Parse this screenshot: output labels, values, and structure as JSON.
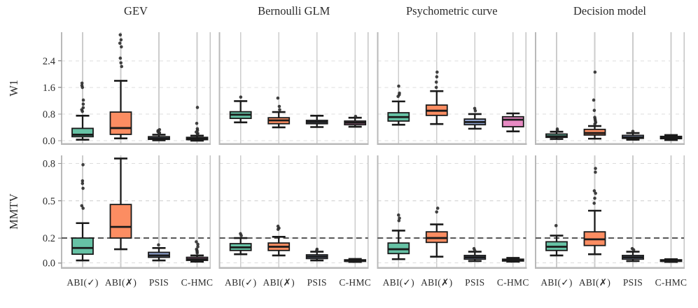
{
  "chart_data": {
    "type": "boxplot",
    "layout_hint": "2x4 grid of box plots; shared y-axis per row; vertical solid gridlines at category centers; horizontal dashed gridlines at y-ticks; no legend",
    "column_titles": [
      "GEV",
      "Bernoulli GLM",
      "Psychometric curve",
      "Decision model"
    ],
    "categories": [
      "ABI(✓)",
      "ABI(✗)",
      "PSIS",
      "C-HMC"
    ],
    "category_colors": [
      "#66c2a5",
      "#fc8d62",
      "#8da0cb",
      "#e78ac3"
    ],
    "box_edge_color": "#1a1a1a",
    "outlier_color": "#2e2e2e",
    "reference_line_color": "#4d4d4d",
    "rows": [
      {
        "ylabel": "W1",
        "ylim": [
          -0.095,
          3.26
        ],
        "yticks": [
          0,
          0.8,
          1.6,
          2.4
        ],
        "ytick_labels": [
          "0.0",
          "0.8",
          "1.6",
          "2.4"
        ],
        "reference_line": null,
        "panels": [
          {
            "column": "GEV",
            "boxes": [
              {
                "method": "ABI(✓)",
                "q1": 0.12,
                "median": 0.18,
                "q3": 0.37,
                "whisker_low": 0.03,
                "whisker_high": 0.75,
                "outliers": [
                  0.88,
                  0.93,
                  0.99,
                  1.1,
                  1.22,
                  1.6,
                  1.66,
                  1.73
                ]
              },
              {
                "method": "ABI(✗)",
                "q1": 0.19,
                "median": 0.38,
                "q3": 0.86,
                "whisker_low": 0.07,
                "whisker_high": 1.8,
                "outliers": [
                  2.23,
                  2.34,
                  2.48,
                  2.82,
                  2.93,
                  3.03,
                  3.18
                ]
              },
              {
                "method": "PSIS",
                "q1": 0.04,
                "median": 0.07,
                "q3": 0.12,
                "whisker_low": 0.01,
                "whisker_high": 0.18,
                "outliers": [
                  0.21,
                  0.24,
                  0.27,
                  0.3,
                  0.33
                ]
              },
              {
                "method": "C-HMC",
                "q1": 0.03,
                "median": 0.06,
                "q3": 0.1,
                "whisker_low": 0.0,
                "whisker_high": 0.15,
                "outliers": [
                  0.19,
                  0.22,
                  0.26,
                  0.31,
                  0.36,
                  0.52,
                  1.0
                ]
              }
            ]
          },
          {
            "column": "Bernoulli GLM",
            "boxes": [
              {
                "method": "ABI(✓)",
                "q1": 0.67,
                "median": 0.78,
                "q3": 0.87,
                "whisker_low": 0.55,
                "whisker_high": 1.19,
                "outliers": [
                  1.31
                ]
              },
              {
                "method": "ABI(✗)",
                "q1": 0.51,
                "median": 0.61,
                "q3": 0.69,
                "whisker_low": 0.4,
                "whisker_high": 0.86,
                "outliers": [
                  0.93,
                  1.03,
                  1.28
                ]
              },
              {
                "method": "PSIS",
                "q1": 0.51,
                "median": 0.56,
                "q3": 0.61,
                "whisker_low": 0.41,
                "whisker_high": 0.75,
                "outliers": []
              },
              {
                "method": "C-HMC",
                "q1": 0.48,
                "median": 0.54,
                "q3": 0.59,
                "whisker_low": 0.42,
                "whisker_high": 0.69,
                "outliers": [
                  0.73
                ]
              }
            ]
          },
          {
            "column": "Psychometric curve",
            "boxes": [
              {
                "method": "ABI(✓)",
                "q1": 0.59,
                "median": 0.71,
                "q3": 0.84,
                "whisker_low": 0.48,
                "whisker_high": 1.18,
                "outliers": [
                  1.33,
                  1.38,
                  1.43,
                  1.64
                ]
              },
              {
                "method": "ABI(✗)",
                "q1": 0.76,
                "median": 0.9,
                "q3": 1.07,
                "whisker_low": 0.5,
                "whisker_high": 1.49,
                "outliers": [
                  1.6,
                  1.76,
                  1.92,
                  2.06
                ]
              },
              {
                "method": "PSIS",
                "q1": 0.48,
                "median": 0.56,
                "q3": 0.65,
                "whisker_low": 0.36,
                "whisker_high": 0.8,
                "outliers": [
                  0.9,
                  0.97
                ]
              },
              {
                "method": "C-HMC",
                "q1": 0.42,
                "median": 0.63,
                "q3": 0.72,
                "whisker_low": 0.28,
                "whisker_high": 0.82,
                "outliers": []
              }
            ]
          },
          {
            "column": "Decision model",
            "boxes": [
              {
                "method": "ABI(✓)",
                "q1": 0.1,
                "median": 0.13,
                "q3": 0.2,
                "whisker_low": 0.05,
                "whisker_high": 0.27,
                "outliers": [
                  0.31,
                  0.35
                ]
              },
              {
                "method": "ABI(✗)",
                "q1": 0.17,
                "median": 0.23,
                "q3": 0.34,
                "whisker_low": 0.06,
                "whisker_high": 0.44,
                "outliers": [
                  0.5,
                  0.55,
                  0.6,
                  0.65,
                  0.7,
                  0.91,
                  1.22,
                  2.06
                ]
              },
              {
                "method": "PSIS",
                "q1": 0.07,
                "median": 0.1,
                "q3": 0.16,
                "whisker_low": 0.03,
                "whisker_high": 0.23,
                "outliers": [
                  0.28
                ]
              },
              {
                "method": "C-HMC",
                "q1": 0.06,
                "median": 0.09,
                "q3": 0.13,
                "whisker_low": 0.02,
                "whisker_high": 0.17,
                "outliers": []
              }
            ]
          }
        ]
      },
      {
        "ylabel": "MMTV",
        "ylim": [
          -0.039,
          0.865
        ],
        "yticks": [
          0,
          0.2,
          0.5,
          0.8
        ],
        "ytick_labels": [
          "0.0",
          "0.2",
          "0.5",
          "0.8"
        ],
        "reference_line": 0.2,
        "panels": [
          {
            "column": "GEV",
            "boxes": [
              {
                "method": "ABI(✓)",
                "q1": 0.07,
                "median": 0.12,
                "q3": 0.2,
                "whisker_low": 0.02,
                "whisker_high": 0.32,
                "outliers": [
                  0.44,
                  0.46,
                  0.6,
                  0.64,
                  0.66,
                  0.79
                ]
              },
              {
                "method": "ABI(✗)",
                "q1": 0.2,
                "median": 0.29,
                "q3": 0.47,
                "whisker_low": 0.11,
                "whisker_high": 0.84,
                "outliers": []
              },
              {
                "method": "PSIS",
                "q1": 0.045,
                "median": 0.06,
                "q3": 0.085,
                "whisker_low": 0.02,
                "whisker_high": 0.12,
                "outliers": [
                  0.145
                ]
              },
              {
                "method": "C-HMC",
                "q1": 0.02,
                "median": 0.03,
                "q3": 0.045,
                "whisker_low": 0.01,
                "whisker_high": 0.06,
                "outliers": [
                  0.08,
                  0.09,
                  0.1,
                  0.11,
                  0.13,
                  0.15,
                  0.17
                ]
              }
            ]
          },
          {
            "column": "Bernoulli GLM",
            "boxes": [
              {
                "method": "ABI(✓)",
                "q1": 0.1,
                "median": 0.125,
                "q3": 0.155,
                "whisker_low": 0.07,
                "whisker_high": 0.2,
                "outliers": [
                  0.22,
                  0.235
                ]
              },
              {
                "method": "ABI(✗)",
                "q1": 0.1,
                "median": 0.13,
                "q3": 0.16,
                "whisker_low": 0.06,
                "whisker_high": 0.21,
                "outliers": [
                  0.27,
                  0.28,
                  0.295
                ]
              },
              {
                "method": "PSIS",
                "q1": 0.035,
                "median": 0.05,
                "q3": 0.065,
                "whisker_low": 0.02,
                "whisker_high": 0.09,
                "outliers": [
                  0.1,
                  0.11
                ]
              },
              {
                "method": "C-HMC",
                "q1": 0.012,
                "median": 0.018,
                "q3": 0.025,
                "whisker_low": 0.008,
                "whisker_high": 0.032,
                "outliers": []
              }
            ]
          },
          {
            "column": "Psychometric curve",
            "boxes": [
              {
                "method": "ABI(✓)",
                "q1": 0.075,
                "median": 0.11,
                "q3": 0.16,
                "whisker_low": 0.03,
                "whisker_high": 0.26,
                "outliers": [
                  0.34,
                  0.36,
                  0.385
                ]
              },
              {
                "method": "ABI(✗)",
                "q1": 0.165,
                "median": 0.2,
                "q3": 0.25,
                "whisker_low": 0.05,
                "whisker_high": 0.31,
                "outliers": [
                  0.41,
                  0.44
                ]
              },
              {
                "method": "PSIS",
                "q1": 0.03,
                "median": 0.045,
                "q3": 0.06,
                "whisker_low": 0.015,
                "whisker_high": 0.09,
                "outliers": [
                  0.1,
                  0.115
                ]
              },
              {
                "method": "C-HMC",
                "q1": 0.015,
                "median": 0.022,
                "q3": 0.03,
                "whisker_low": 0.01,
                "whisker_high": 0.04,
                "outliers": []
              }
            ]
          },
          {
            "column": "Decision model",
            "boxes": [
              {
                "method": "ABI(✓)",
                "q1": 0.1,
                "median": 0.13,
                "q3": 0.17,
                "whisker_low": 0.06,
                "whisker_high": 0.22,
                "outliers": [
                  0.3
                ]
              },
              {
                "method": "ABI(✗)",
                "q1": 0.14,
                "median": 0.19,
                "q3": 0.25,
                "whisker_low": 0.07,
                "whisker_high": 0.42,
                "outliers": [
                  0.48,
                  0.52,
                  0.56,
                  0.58,
                  0.73,
                  0.76
                ]
              },
              {
                "method": "PSIS",
                "q1": 0.03,
                "median": 0.045,
                "q3": 0.06,
                "whisker_low": 0.015,
                "whisker_high": 0.09,
                "outliers": [
                  0.105,
                  0.115
                ]
              },
              {
                "method": "C-HMC",
                "q1": 0.012,
                "median": 0.018,
                "q3": 0.025,
                "whisker_low": 0.008,
                "whisker_high": 0.03,
                "outliers": []
              }
            ]
          }
        ]
      }
    ]
  }
}
